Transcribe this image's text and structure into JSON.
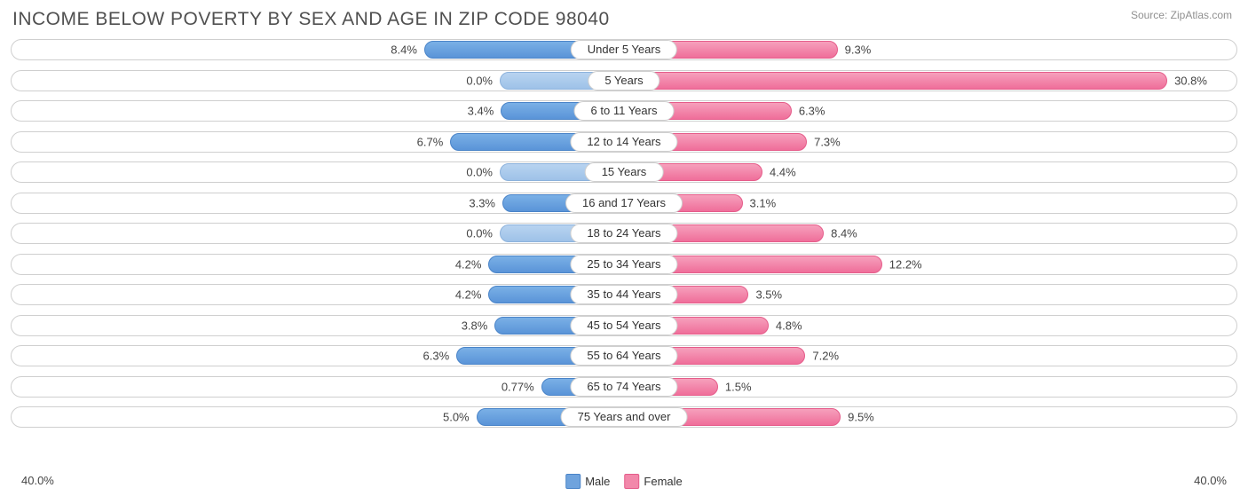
{
  "title": "INCOME BELOW POVERTY BY SEX AND AGE IN ZIP CODE 98040",
  "source": "Source: ZipAtlas.com",
  "chart": {
    "type": "diverging-bar",
    "axis_max": 40.0,
    "axis_label_left": "40.0%",
    "axis_label_right": "40.0%",
    "male_color": "#6fa3dd",
    "female_color": "#f288aa",
    "zero_color": "#9ec2e8",
    "track_border": "#cfcfcf",
    "background": "#ffffff",
    "label_fontsize": 13,
    "title_fontsize": 21,
    "title_color": "#505050",
    "source_color": "#909090",
    "rows": [
      {
        "age": "Under 5 Years",
        "male": 8.4,
        "male_label": "8.4%",
        "female": 9.3,
        "female_label": "9.3%"
      },
      {
        "age": "5 Years",
        "male": 0.0,
        "male_label": "0.0%",
        "female": 30.8,
        "female_label": "30.8%"
      },
      {
        "age": "6 to 11 Years",
        "male": 3.4,
        "male_label": "3.4%",
        "female": 6.3,
        "female_label": "6.3%"
      },
      {
        "age": "12 to 14 Years",
        "male": 6.7,
        "male_label": "6.7%",
        "female": 7.3,
        "female_label": "7.3%"
      },
      {
        "age": "15 Years",
        "male": 0.0,
        "male_label": "0.0%",
        "female": 4.4,
        "female_label": "4.4%"
      },
      {
        "age": "16 and 17 Years",
        "male": 3.3,
        "male_label": "3.3%",
        "female": 3.1,
        "female_label": "3.1%"
      },
      {
        "age": "18 to 24 Years",
        "male": 0.0,
        "male_label": "0.0%",
        "female": 8.4,
        "female_label": "8.4%"
      },
      {
        "age": "25 to 34 Years",
        "male": 4.2,
        "male_label": "4.2%",
        "female": 12.2,
        "female_label": "12.2%"
      },
      {
        "age": "35 to 44 Years",
        "male": 4.2,
        "male_label": "4.2%",
        "female": 3.5,
        "female_label": "3.5%"
      },
      {
        "age": "45 to 54 Years",
        "male": 3.8,
        "male_label": "3.8%",
        "female": 4.8,
        "female_label": "4.8%"
      },
      {
        "age": "55 to 64 Years",
        "male": 6.3,
        "male_label": "6.3%",
        "female": 7.2,
        "female_label": "7.2%"
      },
      {
        "age": "65 to 74 Years",
        "male": 0.77,
        "male_label": "0.77%",
        "female": 1.5,
        "female_label": "1.5%"
      },
      {
        "age": "75 Years and over",
        "male": 5.0,
        "male_label": "5.0%",
        "female": 9.5,
        "female_label": "9.5%"
      }
    ]
  },
  "legend": {
    "male": "Male",
    "female": "Female"
  }
}
